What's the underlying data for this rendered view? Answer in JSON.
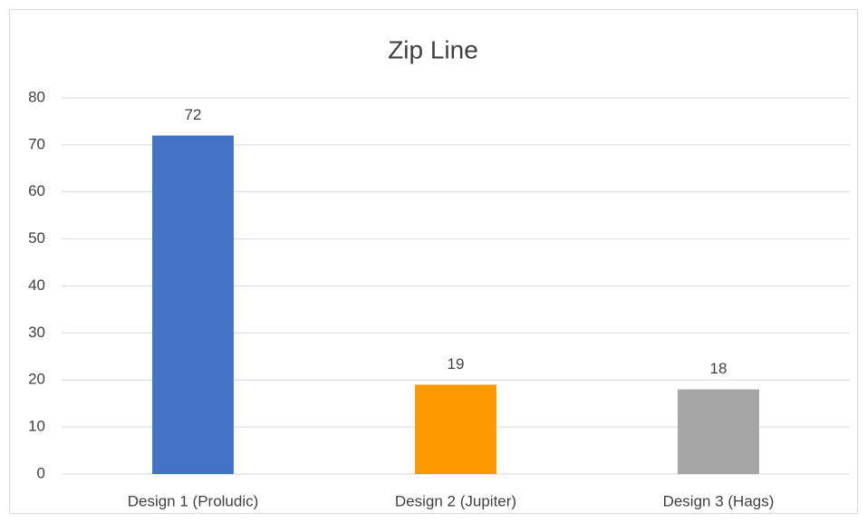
{
  "chart_data": {
    "type": "bar",
    "title": "Zip Line",
    "categories": [
      "Design 1 (Proludic)",
      "Design 2 (Jupiter)",
      "Design 3 (Hags)"
    ],
    "values": [
      72,
      19,
      18
    ],
    "colors": [
      "#4472c4",
      "#ff9900",
      "#a5a5a5"
    ],
    "ylim": [
      0,
      80
    ],
    "yticks": [
      0,
      10,
      20,
      30,
      40,
      50,
      60,
      70,
      80
    ],
    "grid": true
  }
}
